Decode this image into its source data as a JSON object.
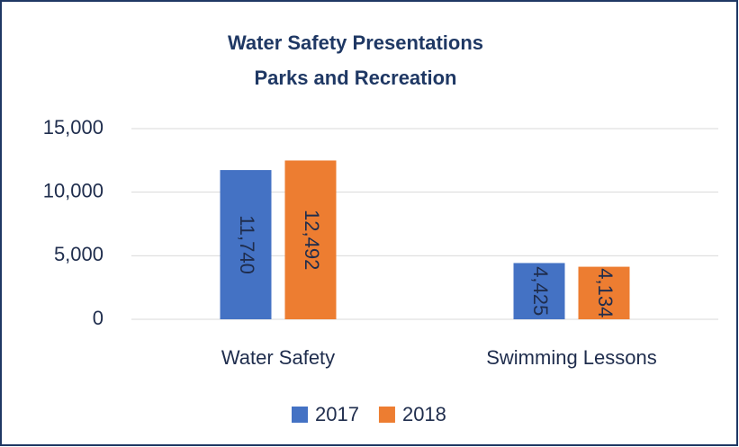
{
  "chart_data": {
    "type": "bar",
    "title": [
      "Water Safety Presentations",
      "Parks and Recreation"
    ],
    "categories": [
      "Water Safety",
      "Swimming Lessons"
    ],
    "series": [
      {
        "name": "2017",
        "color": "#4472c4",
        "values": [
          11740,
          4425
        ],
        "value_labels": [
          "11,740",
          "4,425"
        ]
      },
      {
        "name": "2018",
        "color": "#ed7d31",
        "values": [
          12492,
          4134
        ],
        "value_labels": [
          "12,492",
          "4,134"
        ]
      }
    ],
    "ylim": [
      0,
      15000
    ],
    "yticks": [
      0,
      {
        "value": 5000,
        "label": "5,000"
      },
      {
        "value": 10000,
        "label": "10,000"
      },
      {
        "value": 15000,
        "label": "15,000"
      }
    ],
    "grid": true,
    "legend": "bottom"
  }
}
